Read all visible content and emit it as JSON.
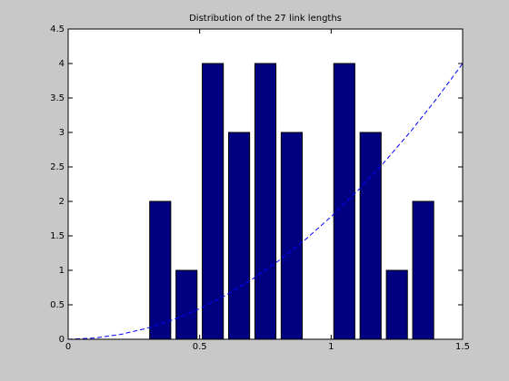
{
  "chart_data": {
    "type": "histogram",
    "title": "Distribution of the 27 link lengths",
    "bins": [
      0.3,
      0.4,
      0.5,
      0.6,
      0.7,
      0.8,
      0.9,
      1.0,
      1.1,
      1.2,
      1.3,
      1.4
    ],
    "counts": [
      2,
      1,
      4,
      3,
      4,
      3,
      0,
      4,
      3,
      1,
      2
    ],
    "color": "#000080",
    "xlim": [
      0,
      1.5
    ],
    "xticks": [
      0,
      0.5,
      1,
      1.5
    ],
    "ylim": [
      0,
      4.5
    ],
    "yticks": [
      0,
      0.5,
      1,
      1.5,
      2,
      2.5,
      3,
      3.5,
      4,
      4.5
    ],
    "line": {
      "type": "line",
      "color": "#0000ff",
      "dashed": true,
      "x": [
        0,
        0.1,
        0.2,
        0.3,
        0.4,
        0.5,
        0.6,
        0.7,
        0.8,
        0.9,
        1.0,
        1.1,
        1.2,
        1.3,
        1.4,
        1.5
      ],
      "values": [
        0,
        0.018,
        0.071,
        0.16,
        0.284,
        0.444,
        0.64,
        0.871,
        1.138,
        1.44,
        1.778,
        2.151,
        2.56,
        3.004,
        3.484,
        4
      ]
    }
  }
}
